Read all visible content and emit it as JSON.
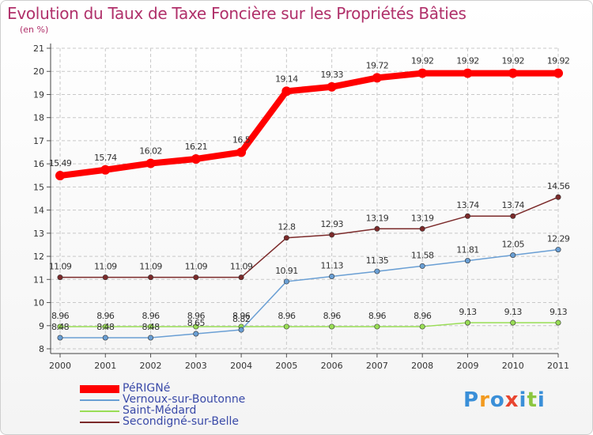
{
  "header": {
    "title": "Evolution du Taux de Taxe Foncière sur les Propriétés Bâties",
    "subtitle": "(en %)"
  },
  "logo": {
    "text": "Proxiti",
    "letters": [
      "P",
      "r",
      "o",
      "x",
      "i",
      "t",
      "i"
    ],
    "colors": [
      "#3a8fd8",
      "#f29a1f",
      "#3a8fd8",
      "#e8452f",
      "#3a8fd8",
      "#8cc63f",
      "#3a8fd8"
    ]
  },
  "chart_data": {
    "type": "line",
    "categories": [
      "2000",
      "2001",
      "2002",
      "2003",
      "2004",
      "2005",
      "2006",
      "2007",
      "2008",
      "2009",
      "2010",
      "2011"
    ],
    "ylim": [
      8,
      21
    ],
    "yticks": [
      "8",
      "9",
      "10",
      "11",
      "12",
      "13",
      "14",
      "15",
      "16",
      "17",
      "18",
      "19",
      "20",
      "21"
    ],
    "grid": true,
    "legend_position": "bottom-left",
    "series": [
      {
        "name": "PéRIGNé",
        "color": "#ff0000",
        "values": [
          15.49,
          15.74,
          16.02,
          16.21,
          16.5,
          19.14,
          19.33,
          19.72,
          19.92,
          19.92,
          19.92,
          19.92
        ],
        "labels": [
          "15.49",
          "15.74",
          "16.02",
          "16.21",
          "16.5",
          "19.14",
          "19.33",
          "19.72",
          "19.92",
          "19.92",
          "19.92",
          "19.92"
        ]
      },
      {
        "name": "Vernoux-sur-Boutonne",
        "color": "#6a9fd4",
        "values": [
          8.48,
          8.48,
          8.48,
          8.65,
          8.82,
          10.91,
          11.13,
          11.35,
          11.58,
          11.81,
          12.05,
          12.29
        ],
        "labels": [
          "8.48",
          "8.48",
          "8.48",
          "8.65",
          "8.82",
          "10.91",
          "11.13",
          "11.35",
          "11.58",
          "11.81",
          "12.05",
          "12.29"
        ]
      },
      {
        "name": "Saint-Médard",
        "color": "#99dd55",
        "values": [
          8.96,
          8.96,
          8.96,
          8.96,
          8.96,
          8.96,
          8.96,
          8.96,
          8.96,
          9.13,
          9.13,
          9.13
        ],
        "labels": [
          "8.96",
          "8.96",
          "8.96",
          "8.96",
          "8.96",
          "8.96",
          "8.96",
          "8.96",
          "8.96",
          "9.13",
          "9.13",
          "9.13"
        ]
      },
      {
        "name": "Secondigné-sur-Belle",
        "color": "#7b2a2a",
        "values": [
          11.09,
          11.09,
          11.09,
          11.09,
          11.09,
          12.8,
          12.93,
          13.19,
          13.19,
          13.74,
          13.74,
          14.56
        ],
        "labels": [
          "11.09",
          "11.09",
          "11.09",
          "11.09",
          "11.09",
          "12.8",
          "12.93",
          "13.19",
          "13.19",
          "13.74",
          "13.74",
          "14.56"
        ]
      }
    ]
  }
}
